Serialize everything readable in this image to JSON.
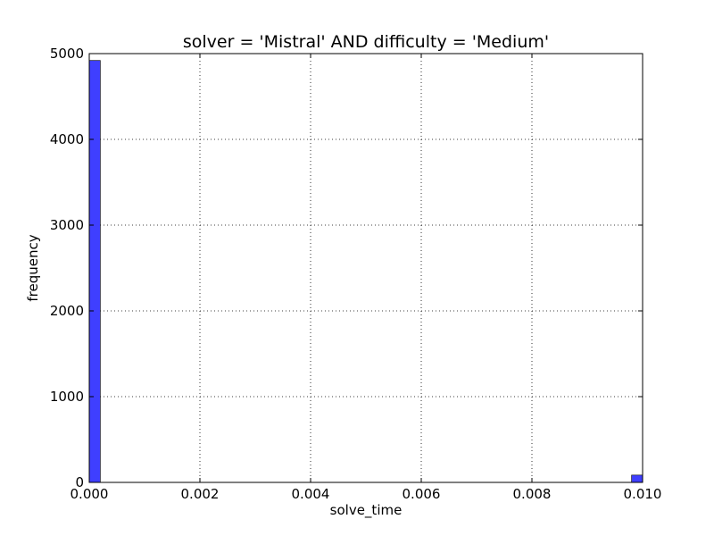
{
  "chart_data": {
    "type": "bar",
    "title": "solver = 'Mistral' AND difficulty = 'Medium'",
    "xlabel": "solve_time",
    "ylabel": "frequency",
    "xlim": [
      0.0,
      0.01
    ],
    "ylim": [
      0,
      5000
    ],
    "grid": true,
    "xticks": [
      0.0,
      0.002,
      0.004,
      0.006,
      0.008,
      0.01
    ],
    "xtick_labels": [
      "0.000",
      "0.002",
      "0.004",
      "0.006",
      "0.008",
      "0.010"
    ],
    "yticks": [
      0,
      1000,
      2000,
      3000,
      4000,
      5000
    ],
    "ytick_labels": [
      "0",
      "1000",
      "2000",
      "3000",
      "4000",
      "5000"
    ],
    "bin_width": 0.0002,
    "bins": [
      {
        "x0": 0.0,
        "x1": 0.0002,
        "count": 4920
      },
      {
        "x0": 0.0098,
        "x1": 0.01,
        "count": 85
      }
    ],
    "bar_color": "#3f3fff"
  }
}
